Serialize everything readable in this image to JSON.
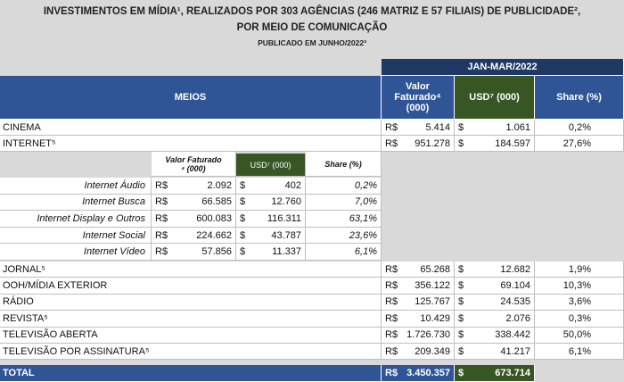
{
  "header": {
    "title_line1": "INVESTIMENTOS EM MÍDIA¹, REALIZADOS POR 303 AGÊNCIAS (246 MATRIZ E 57 FILIAIS) DE PUBLICIDADE²,",
    "title_line2": "POR MEIO DE COMUNICAÇÃO",
    "subtitle": "PUBLICADO EM JUNHO/2022³"
  },
  "table": {
    "period": "JAN-MAR/2022",
    "columns": [
      "MEIOS",
      "Valor Faturado⁴ (000)",
      "USD⁷ (000)",
      "Share (%)"
    ],
    "currency": {
      "brl": "R$",
      "usd": "$"
    },
    "rows": [
      {
        "label": "CINEMA",
        "brl": "5.414",
        "usd": "1.061",
        "share": "0,2%"
      },
      {
        "label": "INTERNET⁵",
        "brl": "951.278",
        "usd": "184.597",
        "share": "27,6%"
      },
      {
        "label": "JORNAL⁵",
        "brl": "65.268",
        "usd": "12.682",
        "share": "1,9%"
      },
      {
        "label": "OOH/MÍDIA EXTERIOR",
        "brl": "356.122",
        "usd": "69.104",
        "share": "10,3%"
      },
      {
        "label": "RÁDIO",
        "brl": "125.767",
        "usd": "24.535",
        "share": "3,6%"
      },
      {
        "label": "REVISTA⁵",
        "brl": "10.429",
        "usd": "2.076",
        "share": "0,3%"
      },
      {
        "label": "TELEVISÃO ABERTA",
        "brl": "1.726.730",
        "usd": "338.442",
        "share": "50,0%"
      },
      {
        "label": "TELEVISÃO POR ASSINATURA⁵",
        "brl": "209.349",
        "usd": "41.217",
        "share": "6,1%"
      }
    ],
    "internet_breakdown": {
      "columns": [
        "Valor Faturado ⁴ (000)",
        "USD⁷ (000)",
        "Share (%)"
      ],
      "rows": [
        {
          "label": "Internet Áudio",
          "brl": "2.092",
          "usd": "402",
          "share": "0,2%"
        },
        {
          "label": "Internet Busca",
          "brl": "66.585",
          "usd": "12.760",
          "share": "7,0%"
        },
        {
          "label": "Internet Display e Outros",
          "brl": "600.083",
          "usd": "116.311",
          "share": "63,1%"
        },
        {
          "label": "Internet Social",
          "brl": "224.662",
          "usd": "43.787",
          "share": "23,6%"
        },
        {
          "label": "Internet Vídeo",
          "brl": "57.856",
          "usd": "11.337",
          "share": "6,1%"
        }
      ]
    },
    "total": {
      "label": "TOTAL",
      "brl": "3.450.357",
      "usd": "673.714"
    }
  }
}
